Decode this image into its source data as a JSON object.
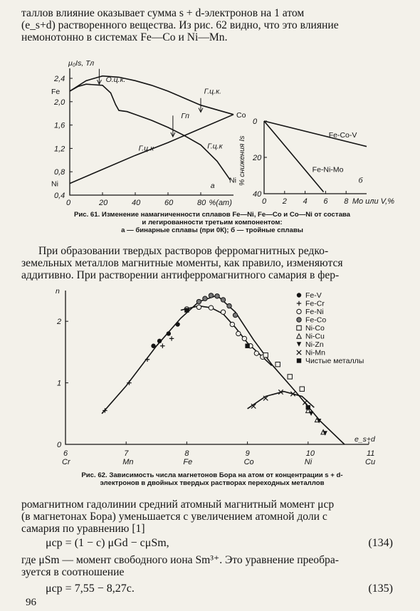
{
  "text": {
    "intro_lines": [
      "таллов влияние оказывает сумма s + d-электронов на 1 атом",
      "(e_s+d) растворенного вещества. Из рис. 62 видно, что это влияние",
      "немонотонно в системах Fe—Co и Ni—Mn."
    ],
    "fig61_caption_line1": "Рис. 61. Изменение намагниченности сплавов Fe—Ni, Fe—Co и Co—Ni от состава",
    "fig61_caption_line2": "и легированности третьим компонентом:",
    "fig61_caption_line3": "а — бинарные сплавы (при 0К); б — тройные сплавы",
    "para2_lines": [
      "При образовании твердых растворов ферромагнитных редко-",
      "земельных металлов магнитные моменты, как правило, изменяются",
      "аддитивно. При растворении антиферромагнитного самария в фер-"
    ],
    "fig62_caption_line1": "Рис. 62. Зависимость числа магнетонов Бора на атом от концентрации s + d-",
    "fig62_caption_line2": "электронов в двойных твердых растворах переходных металлов",
    "para3_lines": [
      "ромагнитном гадолинии средний атомный магнитный момент μср",
      "(в магнетонах Бора) уменьшается с увеличением атомной доли c",
      "самария по уравнению [1]"
    ],
    "eq134": "μср = (1 − c) μGd − cμSm,",
    "eq134_num": "(134)",
    "para4_lines": [
      "где μSm — момент свободного иона Sm³⁺. Это уравнение преобра-",
      "зуется в соотношение"
    ],
    "eq135": "μср = 7,55 − 8,27c.",
    "eq135_num": "(135)",
    "page_number": "96"
  },
  "chart_data": [
    {
      "id": "fig61a",
      "type": "line",
      "ylabel": "μ₀Is, Тл",
      "xlabel": "%(ат)",
      "panel_label": "а",
      "xlim": [
        0,
        100
      ],
      "ylim": [
        0.4,
        2.4
      ],
      "x_ticks": [
        "0",
        "20",
        "40",
        "60",
        "80"
      ],
      "y_ticks": [
        "0,4",
        "0,8",
        "1,2",
        "1,6",
        "2,0",
        "2,4"
      ],
      "end_labels": {
        "left_top": "Fe",
        "left_bottom": "Ni",
        "right_top": "Co",
        "right_bottom": "Ni"
      },
      "annotations": [
        "О.ц.к.",
        "Г.ц.к.",
        "Гп",
        "Г.ц.к",
        "Г.ц.к"
      ],
      "series": [
        {
          "x": [
            0,
            10,
            20,
            30,
            40,
            50,
            60,
            70,
            80,
            90,
            100
          ],
          "values": [
            2.18,
            2.36,
            2.44,
            2.42,
            2.36,
            2.28,
            2.18,
            2.06,
            1.94,
            1.86,
            1.78
          ]
        },
        {
          "x": [
            0,
            5,
            10,
            20,
            25,
            28,
            30,
            35,
            40,
            50,
            60,
            70,
            80,
            90,
            98
          ],
          "values": [
            2.18,
            2.26,
            2.3,
            2.28,
            2.15,
            1.95,
            1.85,
            1.83,
            1.78,
            1.68,
            1.56,
            1.42,
            1.26,
            0.98,
            0.66
          ]
        },
        {
          "x": [
            0,
            20,
            40,
            60,
            80,
            100
          ],
          "values": [
            0.6,
            0.84,
            1.08,
            1.3,
            1.54,
            1.78
          ]
        }
      ]
    },
    {
      "id": "fig61b",
      "type": "line",
      "ylabel": "% снижения Is",
      "xlabel": "Mo или V,%",
      "panel_label": "б",
      "xlim": [
        0,
        10
      ],
      "ylim": [
        0,
        40
      ],
      "y_inverted": true,
      "x_ticks": [
        "0",
        "2",
        "4",
        "6",
        "8"
      ],
      "y_ticks": [
        "0",
        "20",
        "40"
      ],
      "series": [
        {
          "name": "Fe-Co-V",
          "x": [
            0,
            10
          ],
          "values": [
            0,
            14
          ]
        },
        {
          "name": "Fe-Ni-Mo",
          "x": [
            0,
            5.8
          ],
          "values": [
            0,
            39
          ]
        }
      ]
    },
    {
      "id": "fig62",
      "type": "scatter",
      "ylabel": "n",
      "xlabel": "e_s+d",
      "xlim": [
        6,
        11
      ],
      "ylim": [
        0,
        2.5
      ],
      "x_ticks": [
        "6",
        "7",
        "8",
        "9",
        "10",
        "11"
      ],
      "element_ticks": [
        "Cr",
        "Mn",
        "Fe",
        "Co",
        "Ni",
        "Cu"
      ],
      "y_ticks": [
        "0",
        "1",
        "2"
      ],
      "legend_position": "top-right",
      "legend": [
        {
          "marker": "●",
          "label": "Fe-V"
        },
        {
          "marker": "+",
          "label": "Fe-Cr"
        },
        {
          "marker": "○",
          "label": "Fe-Ni"
        },
        {
          "marker": "⊖",
          "label": "Fe-Co"
        },
        {
          "marker": "□",
          "label": "Ni-Co"
        },
        {
          "marker": "△",
          "label": "Ni-Cu"
        },
        {
          "marker": "▼",
          "label": "Ni-Zn"
        },
        {
          "marker": "×",
          "label": "Ni-Mn"
        },
        {
          "marker": "■",
          "label": "Чистые металлы"
        }
      ],
      "series": [
        {
          "name": "Fe-V",
          "marker": "fcircle",
          "x": [
            7.45,
            7.55,
            7.7,
            7.85
          ],
          "values": [
            1.6,
            1.68,
            1.8,
            1.95
          ]
        },
        {
          "name": "Fe-Cr",
          "marker": "plus",
          "x": [
            6.65,
            7.05,
            7.35,
            7.6,
            7.75
          ],
          "values": [
            0.55,
            1.0,
            1.38,
            1.6,
            1.72
          ]
        },
        {
          "name": "Fe-Ni",
          "marker": "ocircle",
          "x": [
            8.0,
            8.2,
            8.4,
            8.6,
            8.75,
            8.85,
            8.95,
            9.05,
            9.15,
            9.25
          ],
          "values": [
            2.2,
            2.23,
            2.22,
            2.15,
            1.95,
            1.8,
            1.72,
            1.6,
            1.48,
            1.42
          ]
        },
        {
          "name": "Fe-Co",
          "marker": "hcircle",
          "x": [
            8.2,
            8.3,
            8.4,
            8.5,
            8.6,
            8.7,
            8.8
          ],
          "values": [
            2.32,
            2.37,
            2.42,
            2.41,
            2.35,
            2.25,
            2.1
          ]
        },
        {
          "name": "Ni-Co",
          "marker": "square",
          "x": [
            9.3,
            9.5,
            9.7,
            9.9
          ],
          "values": [
            1.45,
            1.3,
            1.1,
            0.9
          ]
        },
        {
          "name": "Ni-Cu",
          "marker": "triangle",
          "x": [
            10.0,
            10.15,
            10.25
          ],
          "values": [
            0.55,
            0.4,
            0.2
          ]
        },
        {
          "name": "Ni-Zn",
          "marker": "dtriangle",
          "x": [
            10.05,
            10.18,
            10.28
          ],
          "values": [
            0.5,
            0.38,
            0.18
          ]
        },
        {
          "name": "Ni-Mn",
          "marker": "cross",
          "x": [
            9.1,
            9.3,
            9.55,
            9.75,
            9.95
          ],
          "values": [
            0.62,
            0.75,
            0.85,
            0.82,
            0.68
          ]
        },
        {
          "name": "Чистые металлы",
          "marker": "fsquare",
          "x": [
            8.0,
            9.0,
            10.0
          ],
          "values": [
            2.18,
            1.6,
            0.6
          ]
        }
      ],
      "curves": [
        {
          "x": [
            6.6,
            7.0,
            7.5,
            7.9,
            8.2,
            8.5,
            8.8,
            9.1,
            9.4,
            9.8,
            10.2,
            10.6
          ],
          "values": [
            0.5,
            0.95,
            1.6,
            2.05,
            2.32,
            2.42,
            2.15,
            1.7,
            1.3,
            0.85,
            0.38,
            0.0
          ]
        },
        {
          "x": [
            7.9,
            8.2,
            8.4,
            8.6,
            8.8,
            9.0,
            9.4
          ],
          "values": [
            2.18,
            2.25,
            2.22,
            2.12,
            1.9,
            1.65,
            1.28
          ]
        },
        {
          "x": [
            9.0,
            9.3,
            9.6,
            9.9,
            10.1
          ],
          "values": [
            0.58,
            0.78,
            0.86,
            0.78,
            0.6
          ]
        }
      ]
    }
  ]
}
